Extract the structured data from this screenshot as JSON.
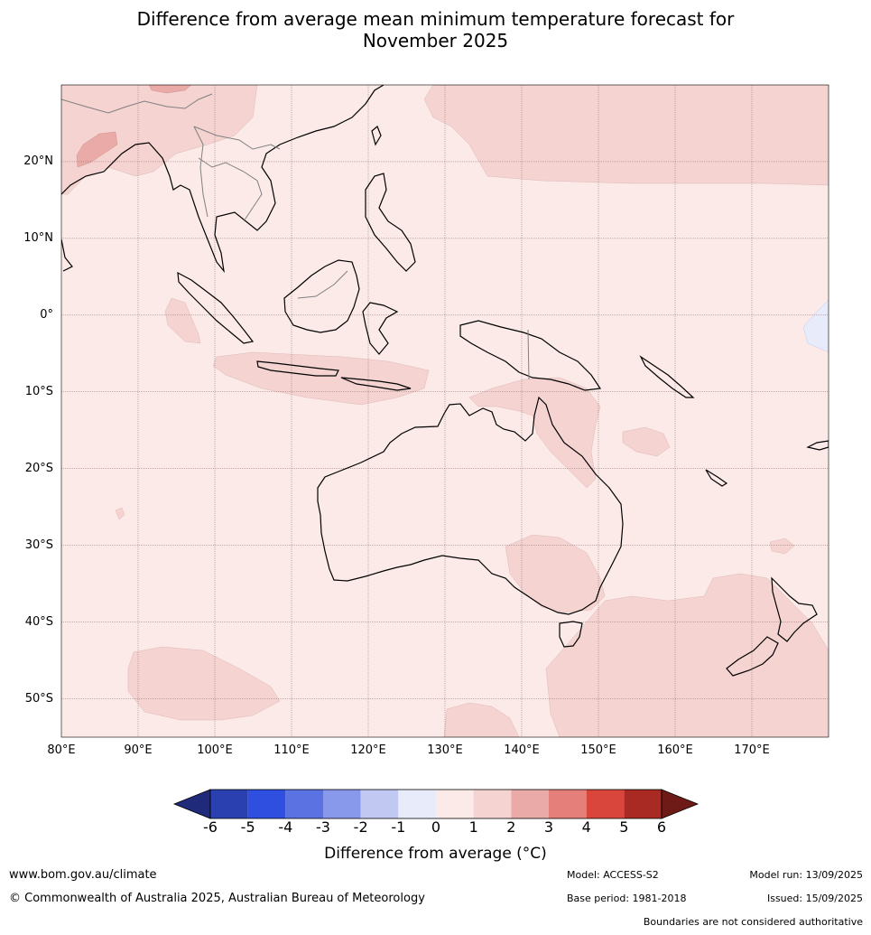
{
  "title": {
    "line1": "Difference from average mean minimum temperature forecast for",
    "line2": "November 2025"
  },
  "map": {
    "lon_range": [
      80,
      180
    ],
    "lat_range": [
      -55,
      30
    ],
    "gridlines": true,
    "lat_labels": [
      "20°N",
      "10°N",
      "0°",
      "10°S",
      "20°S",
      "30°S",
      "40°S",
      "50°S"
    ],
    "lon_labels": [
      "80°E",
      "90°E",
      "100°E",
      "110°E",
      "120°E",
      "130°E",
      "140°E",
      "150°E",
      "160°E",
      "170°E"
    ],
    "colors": {
      "background_0_to_1": "#fbeae8",
      "band_1_to_2": "#f4d3d1",
      "band_2_to_3": "#eaaaa7",
      "band_neg1_to_0": "#e8ecfa",
      "coastline": "#000000",
      "borders": "#808080",
      "gridline": "#8a6a6a"
    }
  },
  "colorbar": {
    "ticks": [
      "-6",
      "-5",
      "-4",
      "-3",
      "-2",
      "-1",
      "0",
      "1",
      "2",
      "3",
      "4",
      "5",
      "6"
    ],
    "colors": [
      "#1f2b7a",
      "#2a3fb0",
      "#2f4fe0",
      "#5b72e3",
      "#8898ea",
      "#c1c8f2",
      "#e8ecfa",
      "#fbeae8",
      "#f4d3d1",
      "#eaaaa7",
      "#e47f79",
      "#d9473c",
      "#a82a22",
      "#6e1a16"
    ],
    "label": "Difference from average (°C)"
  },
  "footer": {
    "website": "www.bom.gov.au/climate",
    "copyright": "© Commonwealth of Australia 2025, Australian Bureau of Meteorology",
    "model": "Model: ACCESS-S2",
    "base_period": "Base period: 1981-2018",
    "model_run": "Model run: 13/09/2025",
    "issued": "Issued: 15/09/2025",
    "disclaimer": "Boundaries are not considered authoritative"
  }
}
